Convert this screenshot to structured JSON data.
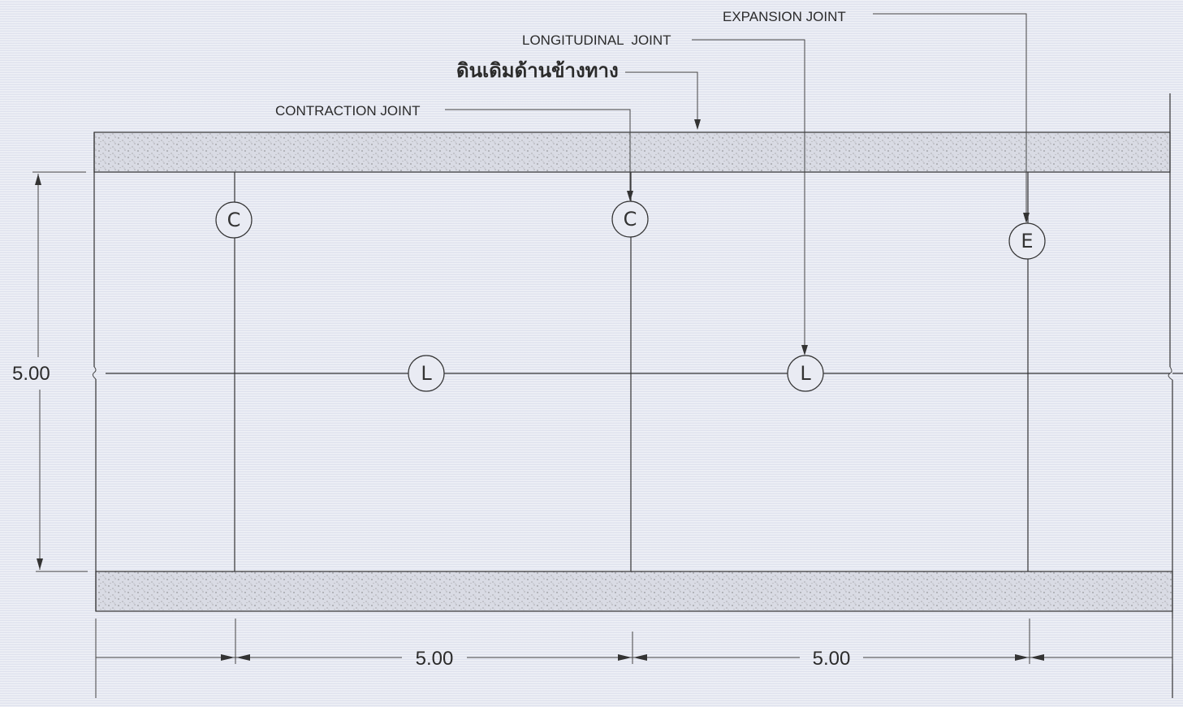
{
  "callouts": {
    "expansion_joint": "EXPANSION JOINT",
    "longitudinal_joint": "LONGITUDINAL  JOINT",
    "existing_ground": "ดินเดิมด้านข้างทาง",
    "contraction_joint": "CONTRACTION JOINT"
  },
  "symbols": {
    "contraction": "C",
    "longitudinal": "L",
    "expansion": "E"
  },
  "dimensions": {
    "width": "5.00",
    "slab_length_1": "5.00",
    "slab_length_2": "5.00"
  },
  "colors": {
    "line": "#333333",
    "background": "#e7e9f2",
    "soil_fill": "#d6d8e2"
  }
}
